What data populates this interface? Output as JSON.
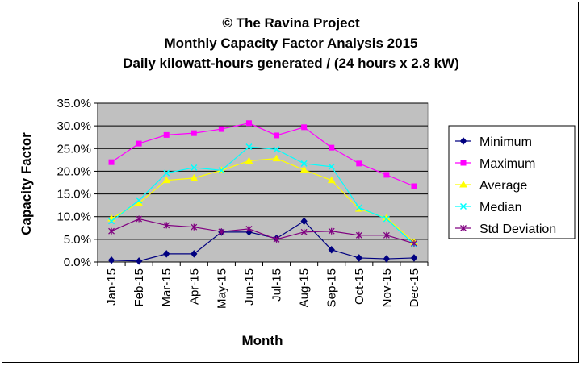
{
  "chart_data": {
    "type": "line",
    "title_lines": [
      "© The Ravina Project",
      "Monthly Capacity Factor Analysis 2015",
      "Daily kilowatt-hours generated / (24 hours x 2.8 kW)"
    ],
    "xlabel": "Month",
    "ylabel": "Capacity Factor",
    "categories": [
      "Jan-15",
      "Feb-15",
      "Mar-15",
      "Apr-15",
      "May-15",
      "Jun-15",
      "Jul-15",
      "Aug-15",
      "Sep-15",
      "Oct-15",
      "Nov-15",
      "Dec-15"
    ],
    "ylim": [
      0,
      35
    ],
    "yticks": [
      0,
      5,
      10,
      15,
      20,
      25,
      30,
      35
    ],
    "ytick_labels": [
      "0.0%",
      "5.0%",
      "10.0%",
      "15.0%",
      "20.0%",
      "25.0%",
      "30.0%",
      "35.0%"
    ],
    "grid": "horizontal",
    "plot_background": "#c0c0c0",
    "legend_position": "right",
    "series": [
      {
        "name": "Minimum",
        "color": "#000080",
        "marker": "diamond",
        "values": [
          0.4,
          0.2,
          1.8,
          1.8,
          6.6,
          6.6,
          5.2,
          9.0,
          2.7,
          0.9,
          0.7,
          0.9
        ]
      },
      {
        "name": "Maximum",
        "color": "#ff00ff",
        "marker": "square",
        "values": [
          22.0,
          26.1,
          28.0,
          28.4,
          29.3,
          30.6,
          27.9,
          29.7,
          25.2,
          21.7,
          19.2,
          16.7
        ]
      },
      {
        "name": "Average",
        "color": "#ffff00",
        "marker": "triangle",
        "values": [
          9.6,
          13.0,
          18.0,
          18.5,
          20.2,
          22.3,
          22.8,
          20.3,
          18.0,
          11.7,
          9.7,
          4.4
        ]
      },
      {
        "name": "Median",
        "color": "#00ffff",
        "marker": "x",
        "values": [
          9.0,
          13.6,
          19.6,
          20.8,
          20.2,
          25.4,
          24.8,
          21.7,
          21.0,
          12.0,
          9.5,
          3.9
        ]
      },
      {
        "name": "Std Deviation",
        "color": "#800080",
        "marker": "star",
        "values": [
          6.8,
          9.5,
          8.1,
          7.7,
          6.7,
          7.3,
          5.0,
          6.6,
          6.8,
          5.9,
          5.9,
          4.1
        ]
      }
    ]
  }
}
